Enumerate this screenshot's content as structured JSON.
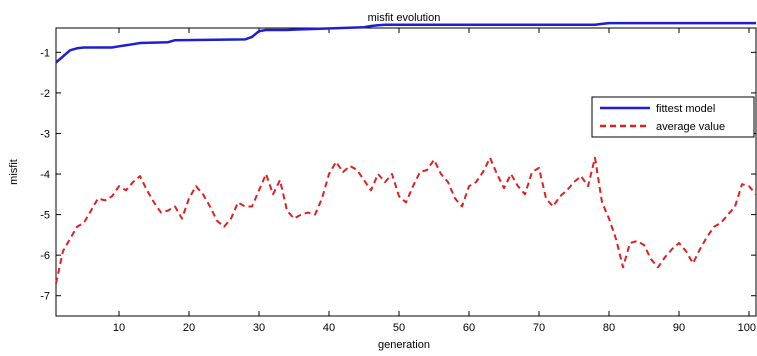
{
  "chart_data": {
    "type": "line",
    "title": "misfit evolution",
    "xlabel": "generation",
    "ylabel": "misfit",
    "xlim": [
      1,
      101
    ],
    "ylim": [
      -7.5,
      -0.4
    ],
    "xticks": [
      10,
      20,
      30,
      40,
      50,
      60,
      70,
      80,
      90,
      100
    ],
    "xtick_labels": [
      "10",
      "20",
      "30",
      "40",
      "50",
      "60",
      "70",
      "80",
      "90",
      "100"
    ],
    "yticks": [
      -7,
      -6,
      -5,
      -4,
      -3,
      -2,
      -1
    ],
    "ytick_labels": [
      "-7",
      "-6",
      "-5",
      "-4",
      "-3",
      "-2",
      "-1"
    ],
    "grid": false,
    "legend": "right",
    "series": [
      {
        "name": "fittest model",
        "color": "#1f1fd0",
        "style": "solid",
        "x": [
          1,
          2,
          3,
          4,
          5,
          9,
          10,
          12,
          13,
          17,
          18,
          28,
          29,
          30,
          31,
          34,
          35,
          45,
          46,
          47,
          48,
          78,
          79,
          80,
          101
        ],
        "y": [
          -1.25,
          -1.1,
          -0.95,
          -0.9,
          -0.88,
          -0.88,
          -0.85,
          -0.8,
          -0.77,
          -0.75,
          -0.7,
          -0.68,
          -0.62,
          -0.48,
          -0.45,
          -0.45,
          -0.44,
          -0.38,
          -0.35,
          -0.33,
          -0.32,
          -0.32,
          -0.3,
          -0.28,
          -0.28
        ]
      },
      {
        "name": "average value",
        "color": "#e02020",
        "style": "dashed",
        "x": [
          1,
          2,
          3,
          4,
          5,
          6,
          7,
          8,
          9,
          10,
          11,
          12,
          13,
          14,
          15,
          16,
          17,
          18,
          19,
          20,
          21,
          22,
          23,
          24,
          25,
          26,
          27,
          28,
          29,
          30,
          31,
          32,
          33,
          34,
          35,
          36,
          37,
          38,
          39,
          40,
          41,
          42,
          43,
          44,
          45,
          46,
          47,
          48,
          49,
          50,
          51,
          52,
          53,
          54,
          55,
          56,
          57,
          58,
          59,
          60,
          61,
          62,
          63,
          64,
          65,
          66,
          67,
          68,
          69,
          70,
          71,
          72,
          73,
          74,
          75,
          76,
          77,
          78,
          79,
          80,
          81,
          82,
          83,
          84,
          85,
          86,
          87,
          88,
          89,
          90,
          91,
          92,
          93,
          94,
          95,
          96,
          97,
          98,
          99,
          100,
          101
        ],
        "y": [
          -6.7,
          -5.9,
          -5.6,
          -5.3,
          -5.2,
          -4.9,
          -4.6,
          -4.65,
          -4.55,
          -4.3,
          -4.4,
          -4.2,
          -4.05,
          -4.4,
          -4.7,
          -4.95,
          -4.9,
          -4.8,
          -5.1,
          -4.6,
          -4.3,
          -4.5,
          -4.8,
          -5.15,
          -5.3,
          -5.1,
          -4.7,
          -4.8,
          -4.8,
          -4.4,
          -4.0,
          -4.5,
          -4.15,
          -4.9,
          -5.1,
          -5.0,
          -4.95,
          -5.0,
          -4.6,
          -4.0,
          -3.7,
          -3.95,
          -3.8,
          -3.9,
          -4.15,
          -4.4,
          -4.0,
          -4.2,
          -4.0,
          -4.55,
          -4.7,
          -4.3,
          -3.95,
          -3.9,
          -3.65,
          -4.0,
          -4.2,
          -4.6,
          -4.8,
          -4.3,
          -4.2,
          -3.95,
          -3.6,
          -4.0,
          -4.35,
          -4.0,
          -4.3,
          -4.5,
          -3.95,
          -3.85,
          -4.6,
          -4.8,
          -4.55,
          -4.4,
          -4.2,
          -4.05,
          -4.3,
          -3.6,
          -4.7,
          -5.1,
          -5.6,
          -6.3,
          -5.7,
          -5.65,
          -5.75,
          -6.1,
          -6.3,
          -6.05,
          -5.85,
          -5.7,
          -5.9,
          -6.2,
          -5.85,
          -5.55,
          -5.3,
          -5.2,
          -5.0,
          -4.8,
          -4.25,
          -4.3,
          -4.5
        ]
      }
    ]
  }
}
